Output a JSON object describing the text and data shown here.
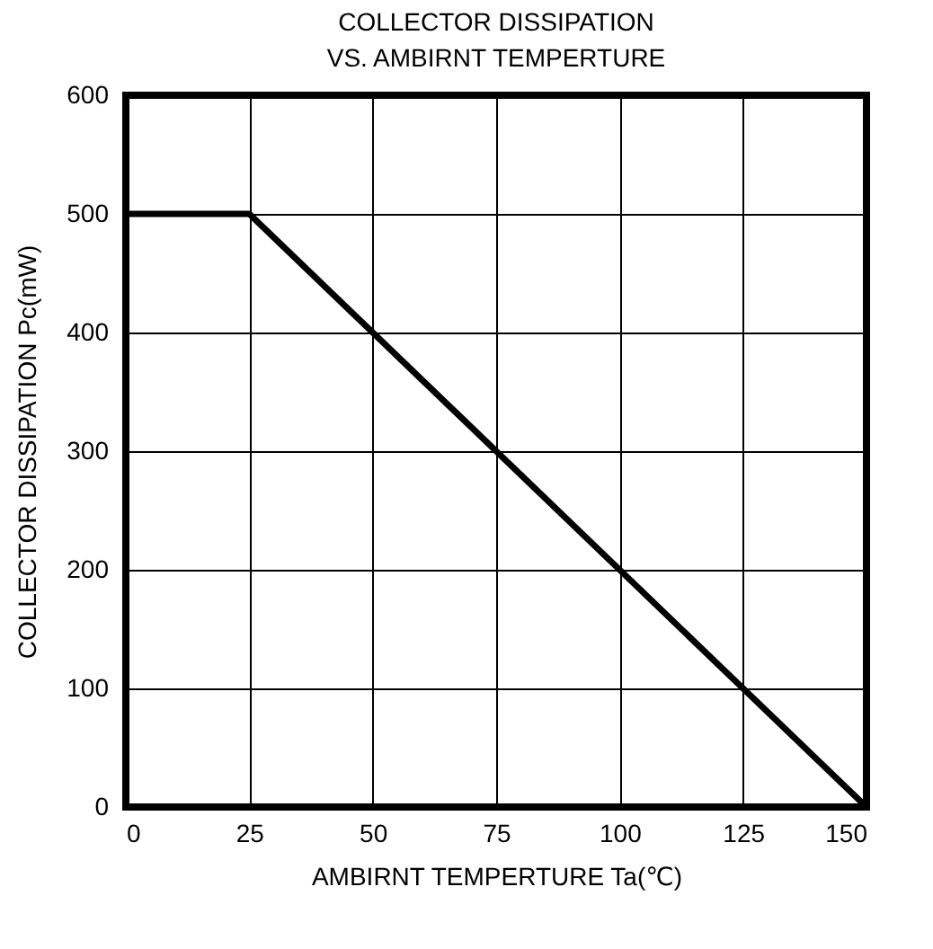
{
  "chart_data": {
    "type": "line",
    "title": "COLLECTOR DISSIPATION\nVS. AMBIRNT TEMPERTURE",
    "xlabel": "AMBIRNT TEMPERTURE  Ta(℃)",
    "ylabel": "COLLECTOR DISSIPATION  Pc(mW)",
    "x": [
      0,
      25,
      150
    ],
    "values": [
      500,
      500,
      0
    ],
    "color": "#000000",
    "xlim": [
      0,
      150
    ],
    "ylim": [
      0,
      600
    ],
    "xticks": [
      0,
      25,
      50,
      75,
      100,
      125,
      150
    ],
    "yticks": [
      0,
      100,
      200,
      300,
      400,
      500,
      600
    ],
    "grid": true
  }
}
